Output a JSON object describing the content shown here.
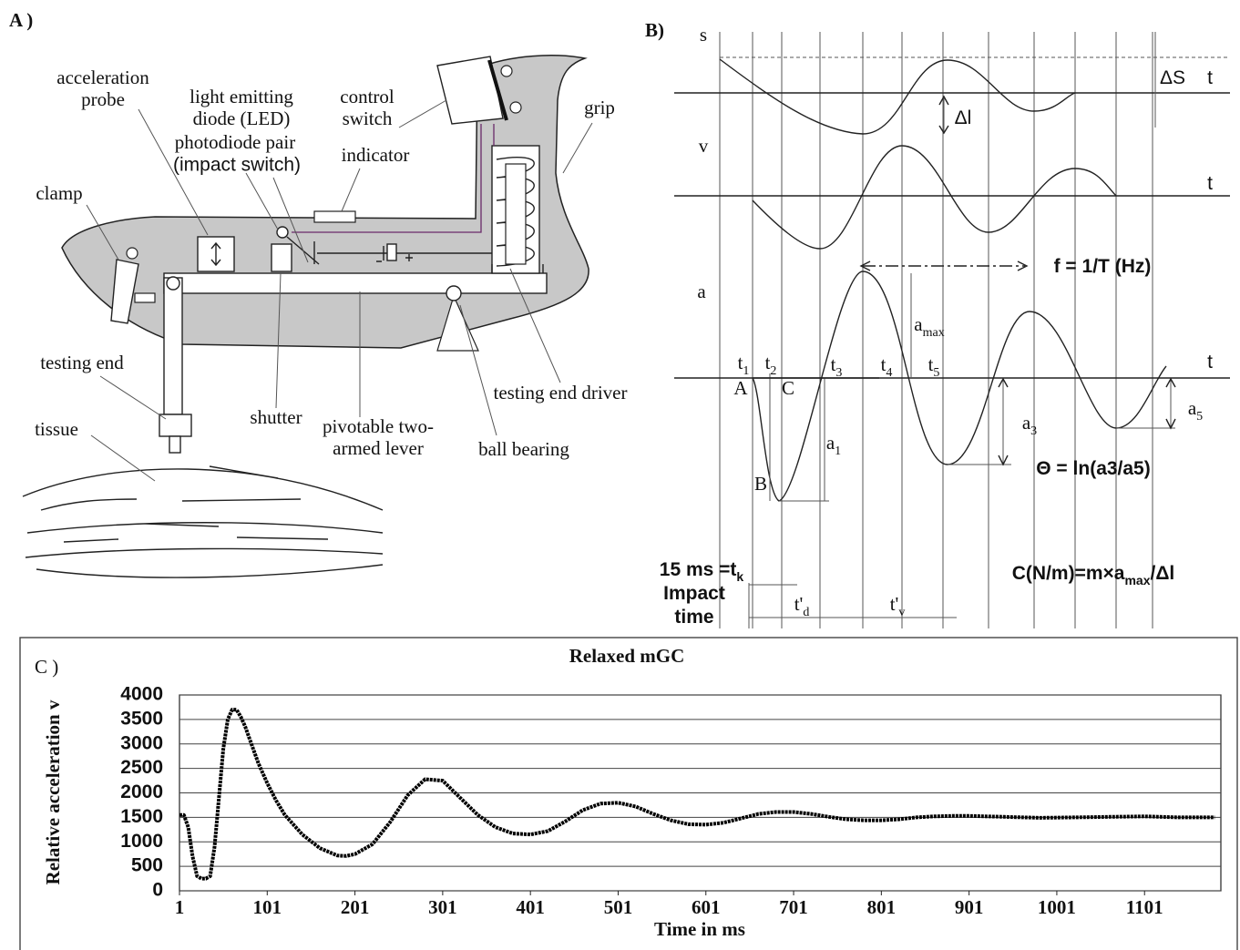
{
  "panel_a": {
    "label": "A )",
    "parts": [
      {
        "lines": [
          "acceleration",
          "probe"
        ]
      },
      {
        "lines": [
          "light emitting",
          "diode (LED)"
        ]
      },
      {
        "lines": [
          "photodiode  pair"
        ]
      },
      {
        "lines": [
          "(impact switch)"
        ]
      },
      {
        "lines": [
          "control",
          "switch"
        ]
      },
      {
        "lines": [
          "indicator"
        ]
      },
      {
        "lines": [
          "grip"
        ]
      },
      {
        "lines": [
          "clamp"
        ]
      },
      {
        "lines": [
          "testing end"
        ]
      },
      {
        "lines": [
          "tissue"
        ]
      },
      {
        "lines": [
          "shutter"
        ]
      },
      {
        "lines": [
          "pivotable two-",
          "armed lever"
        ]
      },
      {
        "lines": [
          "ball  bearing"
        ]
      },
      {
        "lines": [
          "testing end   driver"
        ]
      }
    ]
  },
  "panel_b": {
    "label": "B)",
    "items": [
      {
        "text": "s"
      },
      {
        "text": "t"
      },
      {
        "text": "ΔS"
      },
      {
        "text": "Δl"
      },
      {
        "text": "v"
      },
      {
        "text": "t"
      },
      {
        "text": "a"
      },
      {
        "text": "f = 1/T (Hz)"
      },
      {
        "text": "a",
        "sub": "max"
      },
      {
        "text": "t"
      },
      {
        "text": "t",
        "sub": "1"
      },
      {
        "text": "t",
        "sub": "2"
      },
      {
        "text": "t",
        "sub": "3"
      },
      {
        "text": "t",
        "sub": "4"
      },
      {
        "text": "t",
        "sub": "5"
      },
      {
        "text": "A"
      },
      {
        "text": "C"
      },
      {
        "text": "B"
      },
      {
        "text": "a",
        "sub": "1"
      },
      {
        "text": "a",
        "sub": "3"
      },
      {
        "text": "a",
        "sub": "5"
      },
      {
        "text": "Θ = ln(a3/a5)"
      },
      {
        "text": "15 ms =t",
        "sub": "k"
      },
      {
        "text": "Impact"
      },
      {
        "text": "time"
      },
      {
        "text": "t'",
        "sub": "d"
      },
      {
        "text": "t'",
        "sub": "v"
      },
      {
        "text": "C(N/m)=m×a",
        "sub": "max",
        "after": "/Δl"
      }
    ]
  },
  "chart_data": {
    "type": "line",
    "panel_label": "C )",
    "title": "Relaxed mGC",
    "x_label": "Time in ms",
    "y_label": "Relative acceleration v",
    "x": [
      1,
      6,
      11,
      16,
      21,
      26,
      31,
      36,
      41,
      46,
      51,
      56,
      61,
      66,
      71,
      76,
      81,
      91,
      101,
      111,
      121,
      141,
      161,
      181,
      191,
      201,
      221,
      241,
      261,
      281,
      301,
      321,
      341,
      361,
      381,
      401,
      421,
      441,
      461,
      481,
      501,
      521,
      541,
      561,
      581,
      601,
      621,
      641,
      661,
      681,
      701,
      721,
      741,
      761,
      781,
      801,
      821,
      841,
      861,
      881,
      901,
      941,
      981,
      1021,
      1061,
      1101,
      1141,
      1181
    ],
    "series": [
      {
        "name": "Relaxed mGC",
        "color": "#000000",
        "values": [
          1550,
          1550,
          1300,
          700,
          300,
          250,
          250,
          300,
          900,
          1900,
          2900,
          3500,
          3700,
          3700,
          3550,
          3350,
          3100,
          2600,
          2200,
          1850,
          1550,
          1150,
          870,
          720,
          710,
          750,
          950,
          1400,
          1950,
          2280,
          2250,
          1900,
          1550,
          1300,
          1170,
          1150,
          1220,
          1420,
          1650,
          1780,
          1800,
          1720,
          1570,
          1440,
          1360,
          1350,
          1390,
          1480,
          1570,
          1610,
          1610,
          1570,
          1510,
          1460,
          1440,
          1440,
          1460,
          1500,
          1520,
          1530,
          1530,
          1510,
          1490,
          1500,
          1510,
          1520,
          1500,
          1500
        ]
      }
    ],
    "xlim": [
      1,
      1188
    ],
    "xticks": [
      1,
      101,
      201,
      301,
      401,
      501,
      601,
      701,
      801,
      901,
      1001,
      1101
    ],
    "ylim": [
      0,
      4000
    ],
    "yticks": [
      0,
      500,
      1000,
      1500,
      2000,
      2500,
      3000,
      3500,
      4000
    ],
    "grid": true
  }
}
